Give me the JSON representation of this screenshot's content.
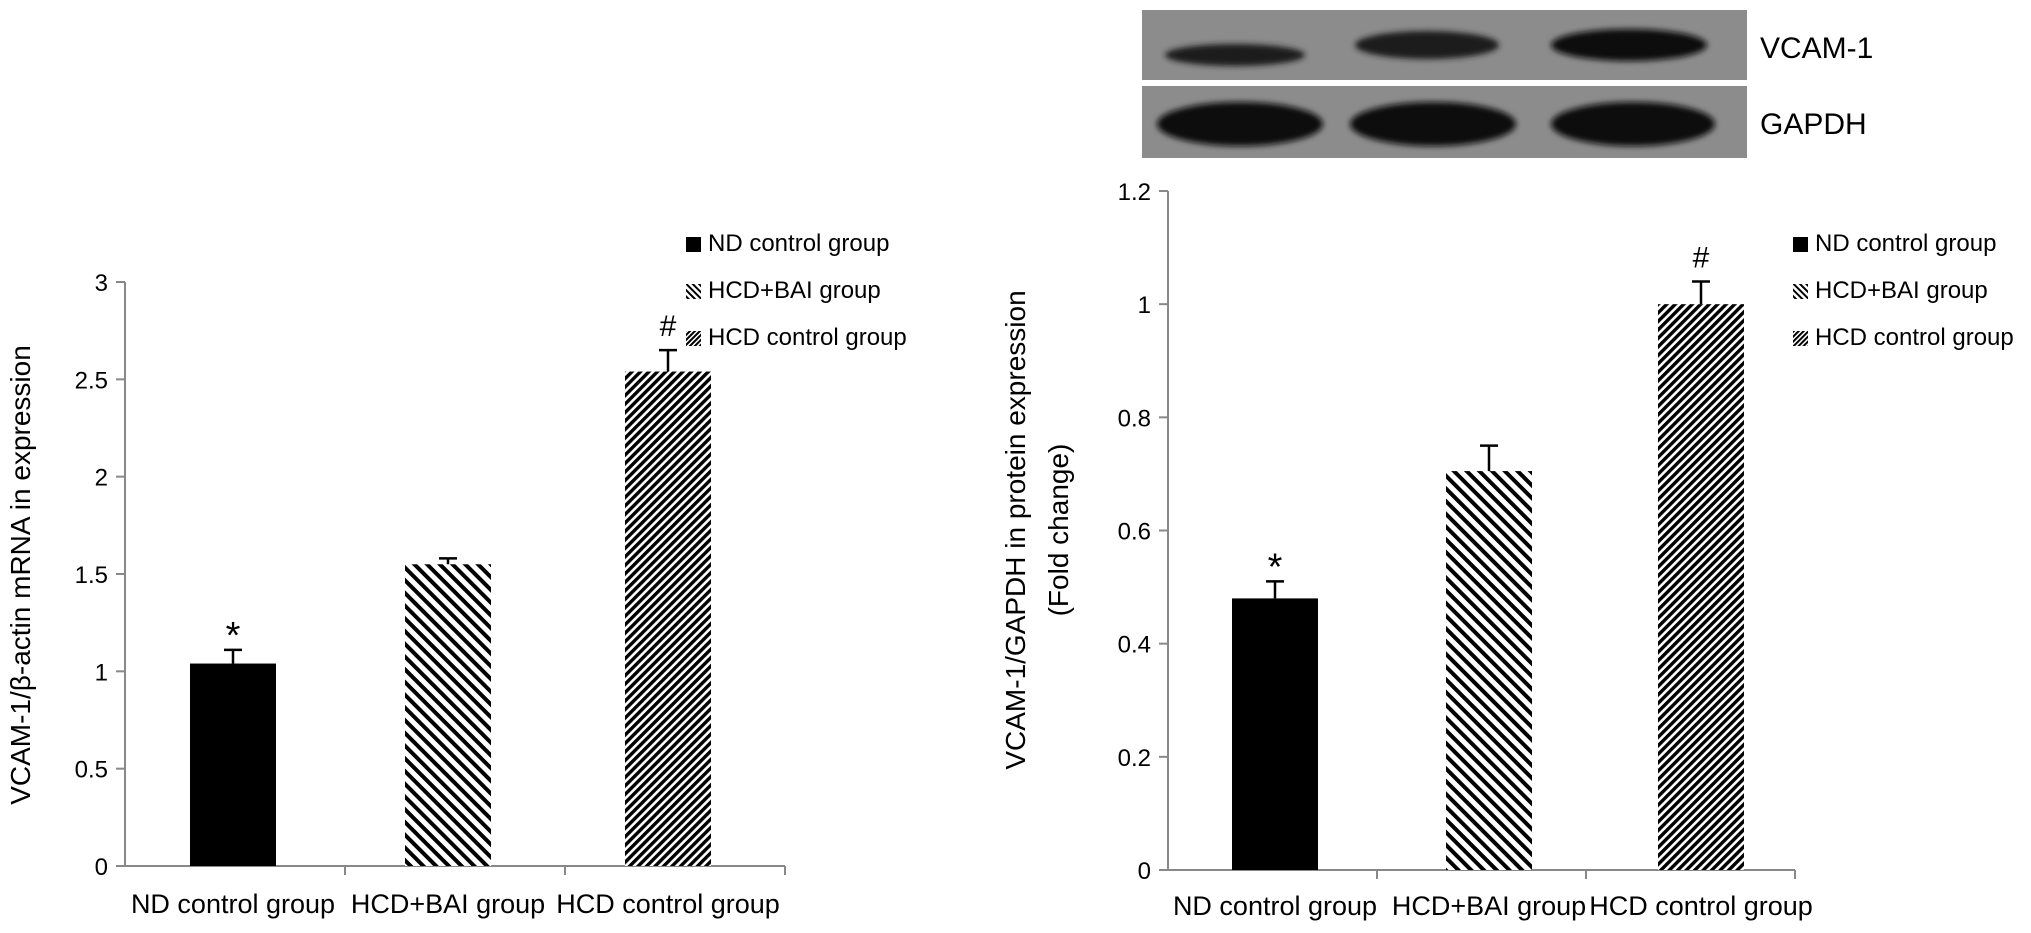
{
  "colors": {
    "background": "#ffffff",
    "axis": "#888888",
    "bar": "#000000",
    "blot_bg": "#8c8c8c",
    "band": "#1a1a1a"
  },
  "blot": {
    "labels": [
      "VCAM-1",
      "GAPDH"
    ]
  },
  "chart_data": [
    {
      "type": "bar",
      "categories": [
        "ND control group",
        "HCD+BAI group",
        "HCD control group"
      ],
      "values": [
        1.04,
        1.55,
        2.54
      ],
      "errors": [
        0.07,
        0.03,
        0.11
      ],
      "annotations": [
        "*",
        "",
        "#"
      ],
      "patterns": [
        "solid",
        "diag-back-sparse",
        "diag-fwd-dense"
      ],
      "ylabel": "VCAM-1/β-actin mRNA in expression",
      "ylim": [
        0,
        3
      ],
      "yticks": [
        "0",
        "0.5",
        "1",
        "1.5",
        "2",
        "2.5",
        "3"
      ],
      "legend": [
        "ND control group",
        "HCD+BAI group",
        "HCD control group"
      ],
      "legend_position": "top-right",
      "grid": false
    },
    {
      "type": "bar",
      "categories": [
        "ND control group",
        "HCD+BAI group",
        "HCD control group"
      ],
      "values": [
        0.48,
        0.705,
        1.0
      ],
      "errors": [
        0.03,
        0.045,
        0.04
      ],
      "annotations": [
        "*",
        "",
        "#"
      ],
      "patterns": [
        "solid",
        "diag-back-sparse",
        "diag-fwd-dense"
      ],
      "ylabel": "VCAM-1/GAPDH in protein expression",
      "ylabel2": "(Fold change)",
      "ylim": [
        0,
        1.2
      ],
      "yticks": [
        "0",
        "0.2",
        "0.4",
        "0.6",
        "0.8",
        "1",
        "1.2"
      ],
      "legend": [
        "ND control group",
        "HCD+BAI group",
        "HCD control group"
      ],
      "legend_position": "top-right",
      "grid": false
    }
  ]
}
